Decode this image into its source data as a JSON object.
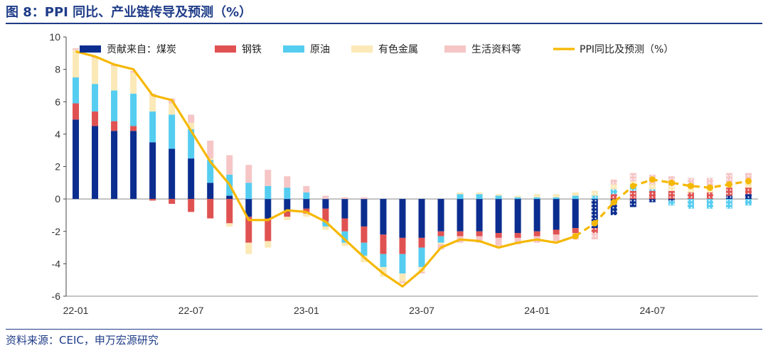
{
  "title": "图 8：PPI 同比、产业链传导及预测（%）",
  "source": "资料来源：CEIC，申万宏源研究",
  "colors": {
    "coal": "#0a2d8f",
    "steel": "#e05252",
    "oil": "#55cdf0",
    "nonferrous": "#fbe9b7",
    "consumer": "#f6c6c6",
    "ppi": "#f5b800",
    "frame": "#1f3c88"
  },
  "chart_data": {
    "type": "bar",
    "stacked": true,
    "categories": [
      "22-01",
      "22-02",
      "22-03",
      "22-04",
      "22-05",
      "22-06",
      "22-07",
      "22-08",
      "22-09",
      "22-10",
      "22-11",
      "22-12",
      "23-01",
      "23-02",
      "23-03",
      "23-04",
      "23-05",
      "23-06",
      "23-07",
      "23-08",
      "23-09",
      "23-10",
      "23-11",
      "23-12",
      "24-01",
      "24-02",
      "24-03",
      "24-04",
      "24-05",
      "24-06",
      "24-07",
      "24-08",
      "24-09",
      "24-10",
      "24-11",
      "24-12"
    ],
    "x_tick_labels": [
      "22-01",
      "22-07",
      "23-01",
      "23-07",
      "24-01",
      "24-07"
    ],
    "ylim": [
      -6,
      10
    ],
    "yticks": [
      -6,
      -4,
      -2,
      0,
      2,
      4,
      6,
      8,
      10
    ],
    "forecast_start_index": 27,
    "legend_position": "top",
    "series": [
      {
        "name": "贡献来自：煤炭",
        "key": "coal",
        "values": [
          4.9,
          4.5,
          4.2,
          4.2,
          3.5,
          3.1,
          2.5,
          1.0,
          0.2,
          -1.1,
          -1.2,
          -0.8,
          -0.6,
          -0.6,
          -1.2,
          -1.7,
          -2.2,
          -2.4,
          -2.4,
          -2.0,
          -2.0,
          -2.0,
          -2.1,
          -2.1,
          -2.0,
          -1.9,
          -1.8,
          -1.8,
          -1.0,
          -0.5,
          -0.2,
          -0.1,
          0.0,
          0.0,
          0.2,
          0.3
        ]
      },
      {
        "name": "钢铁",
        "key": "steel",
        "values": [
          1.0,
          0.9,
          0.6,
          0.3,
          -0.1,
          -0.3,
          -0.8,
          -1.2,
          -1.5,
          -1.6,
          -1.4,
          -0.3,
          -0.3,
          -0.8,
          -0.8,
          -1.0,
          -1.2,
          -1.0,
          -0.6,
          -0.3,
          -0.3,
          -0.3,
          -0.3,
          -0.3,
          -0.3,
          -0.3,
          -0.3,
          -0.3,
          0.3,
          0.5,
          0.5,
          0.5,
          0.4,
          0.4,
          0.5,
          0.4
        ]
      },
      {
        "name": "原油",
        "key": "oil",
        "values": [
          1.6,
          1.7,
          1.9,
          2.0,
          1.9,
          2.1,
          1.8,
          1.4,
          1.3,
          1.0,
          0.8,
          0.7,
          0.4,
          -0.3,
          -0.7,
          -0.8,
          -0.8,
          -1.2,
          -1.2,
          -0.4,
          0.3,
          0.3,
          0.2,
          0.1,
          0.1,
          0.1,
          0.2,
          0.2,
          0.3,
          0.3,
          0.1,
          -0.3,
          -0.6,
          -0.6,
          -0.6,
          -0.4
        ]
      },
      {
        "name": "有色金属",
        "key": "nonferrous",
        "values": [
          1.7,
          1.6,
          1.5,
          1.3,
          1.0,
          0.7,
          0.4,
          0.1,
          -0.2,
          -0.7,
          -0.4,
          -0.2,
          -0.2,
          -0.2,
          -0.2,
          -0.4,
          -0.6,
          -0.5,
          -0.3,
          -0.1,
          0.1,
          0.1,
          0.1,
          0.1,
          0.2,
          0.2,
          0.2,
          0.3,
          0.3,
          0.3,
          0.3,
          0.3,
          0.3,
          0.3,
          0.3,
          0.3
        ]
      },
      {
        "name": "生活资料等",
        "key": "consumer",
        "values": [
          0.1,
          0.1,
          0.1,
          0.1,
          0.1,
          0.3,
          0.5,
          1.1,
          1.2,
          1.1,
          1.0,
          0.7,
          0.4,
          0.2,
          0.1,
          0.1,
          0.0,
          -0.1,
          -0.1,
          -0.3,
          -0.4,
          -0.4,
          -0.5,
          -0.4,
          -0.4,
          -0.4,
          -0.4,
          -0.4,
          0.3,
          0.5,
          0.6,
          0.6,
          0.6,
          0.6,
          0.6,
          0.6
        ]
      }
    ],
    "line": {
      "name": "PPI同比及预测（%）",
      "key": "ppi",
      "values": [
        9.1,
        8.8,
        8.3,
        8.0,
        6.4,
        6.1,
        4.2,
        2.3,
        0.9,
        -1.3,
        -1.3,
        -0.7,
        -0.8,
        -1.4,
        -2.5,
        -3.6,
        -4.6,
        -5.4,
        -4.4,
        -3.0,
        -2.5,
        -2.6,
        -3.0,
        -2.7,
        -2.5,
        -2.7,
        -2.3,
        -1.5,
        -0.2,
        0.8,
        1.2,
        1.0,
        0.8,
        0.7,
        0.9,
        1.1
      ]
    }
  }
}
